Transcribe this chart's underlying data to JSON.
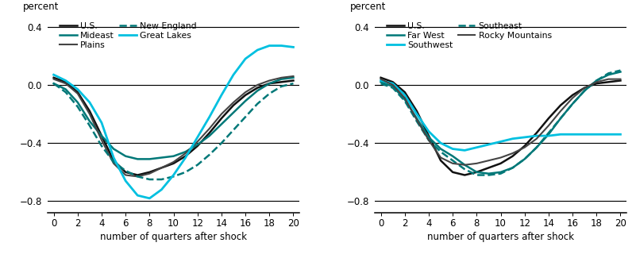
{
  "quarters": [
    0,
    1,
    2,
    3,
    4,
    5,
    6,
    7,
    8,
    9,
    10,
    11,
    12,
    13,
    14,
    15,
    16,
    17,
    18,
    19,
    20
  ],
  "panel1": {
    "title_y": "percent",
    "xlabel": "number of quarters after shock",
    "ylim": [
      -0.88,
      0.46
    ],
    "yticks": [
      -0.8,
      -0.4,
      0.0,
      0.4
    ],
    "xticks": [
      0,
      2,
      4,
      6,
      8,
      10,
      12,
      14,
      16,
      18,
      20
    ],
    "series": [
      {
        "name": "U.S.",
        "color": "#111111",
        "lw": 1.8,
        "linestyle": "solid",
        "data": [
          0.05,
          0.02,
          -0.05,
          -0.18,
          -0.35,
          -0.52,
          -0.6,
          -0.62,
          -0.6,
          -0.57,
          -0.54,
          -0.49,
          -0.42,
          -0.33,
          -0.23,
          -0.14,
          -0.07,
          -0.02,
          0.01,
          0.02,
          0.03
        ]
      },
      {
        "name": "Mideast",
        "color": "#007878",
        "lw": 1.8,
        "linestyle": "solid",
        "data": [
          0.01,
          -0.03,
          -0.12,
          -0.25,
          -0.35,
          -0.44,
          -0.49,
          -0.51,
          -0.51,
          -0.5,
          -0.49,
          -0.46,
          -0.41,
          -0.35,
          -0.27,
          -0.19,
          -0.11,
          -0.04,
          0.01,
          0.04,
          0.05
        ]
      },
      {
        "name": "Plains",
        "color": "#444444",
        "lw": 1.5,
        "linestyle": "solid",
        "data": [
          0.04,
          0.01,
          -0.06,
          -0.2,
          -0.38,
          -0.54,
          -0.62,
          -0.63,
          -0.61,
          -0.57,
          -0.53,
          -0.47,
          -0.39,
          -0.3,
          -0.2,
          -0.12,
          -0.05,
          0.0,
          0.03,
          0.05,
          0.06
        ]
      },
      {
        "name": "New England",
        "color": "#007878",
        "lw": 1.8,
        "linestyle": "dashed",
        "data": [
          0.01,
          -0.05,
          -0.15,
          -0.28,
          -0.42,
          -0.53,
          -0.59,
          -0.63,
          -0.65,
          -0.65,
          -0.63,
          -0.6,
          -0.55,
          -0.48,
          -0.4,
          -0.31,
          -0.22,
          -0.13,
          -0.06,
          -0.01,
          0.01
        ]
      },
      {
        "name": "Great Lakes",
        "color": "#00c0e0",
        "lw": 2.0,
        "linestyle": "solid",
        "data": [
          0.07,
          0.03,
          -0.03,
          -0.12,
          -0.26,
          -0.5,
          -0.66,
          -0.76,
          -0.78,
          -0.72,
          -0.62,
          -0.5,
          -0.36,
          -0.22,
          -0.07,
          0.07,
          0.18,
          0.24,
          0.27,
          0.27,
          0.26
        ]
      }
    ],
    "legend": [
      {
        "label": "U.S.",
        "color": "#111111",
        "lw": 1.8,
        "linestyle": "solid"
      },
      {
        "label": "Mideast",
        "color": "#007878",
        "lw": 1.8,
        "linestyle": "solid"
      },
      {
        "label": "Plains",
        "color": "#444444",
        "lw": 1.5,
        "linestyle": "solid"
      },
      {
        "label": "New England",
        "color": "#007878",
        "lw": 1.8,
        "linestyle": "dashed"
      },
      {
        "label": "Great Lakes",
        "color": "#00c0e0",
        "lw": 2.0,
        "linestyle": "solid"
      }
    ]
  },
  "panel2": {
    "title_y": "percent",
    "xlabel": "number of quarters after shock",
    "ylim": [
      -0.88,
      0.46
    ],
    "yticks": [
      -0.8,
      -0.4,
      0.0,
      0.4
    ],
    "xticks": [
      0,
      2,
      4,
      6,
      8,
      10,
      12,
      14,
      16,
      18,
      20
    ],
    "series": [
      {
        "name": "U.S.",
        "color": "#111111",
        "lw": 1.8,
        "linestyle": "solid",
        "data": [
          0.05,
          0.02,
          -0.05,
          -0.18,
          -0.35,
          -0.52,
          -0.6,
          -0.62,
          -0.6,
          -0.57,
          -0.54,
          -0.49,
          -0.42,
          -0.33,
          -0.23,
          -0.14,
          -0.07,
          -0.02,
          0.01,
          0.02,
          0.03
        ]
      },
      {
        "name": "Far West",
        "color": "#007878",
        "lw": 1.8,
        "linestyle": "solid",
        "data": [
          0.02,
          -0.01,
          -0.1,
          -0.23,
          -0.36,
          -0.44,
          -0.49,
          -0.55,
          -0.6,
          -0.61,
          -0.6,
          -0.57,
          -0.51,
          -0.43,
          -0.34,
          -0.23,
          -0.13,
          -0.04,
          0.03,
          0.07,
          0.09
        ]
      },
      {
        "name": "Southwest",
        "color": "#00c0e0",
        "lw": 2.0,
        "linestyle": "solid",
        "data": [
          0.03,
          0.01,
          -0.07,
          -0.2,
          -0.32,
          -0.4,
          -0.44,
          -0.45,
          -0.43,
          -0.41,
          -0.39,
          -0.37,
          -0.36,
          -0.35,
          -0.35,
          -0.34,
          -0.34,
          -0.34,
          -0.34,
          -0.34,
          -0.34
        ]
      },
      {
        "name": "Southeast",
        "color": "#007878",
        "lw": 1.8,
        "linestyle": "dashed",
        "data": [
          0.01,
          -0.02,
          -0.11,
          -0.25,
          -0.38,
          -0.46,
          -0.52,
          -0.58,
          -0.62,
          -0.62,
          -0.61,
          -0.57,
          -0.51,
          -0.43,
          -0.33,
          -0.23,
          -0.13,
          -0.04,
          0.03,
          0.08,
          0.1
        ]
      },
      {
        "name": "Rocky Mountains",
        "color": "#444444",
        "lw": 1.5,
        "linestyle": "solid",
        "data": [
          0.04,
          0.0,
          -0.09,
          -0.24,
          -0.38,
          -0.5,
          -0.54,
          -0.55,
          -0.54,
          -0.52,
          -0.5,
          -0.47,
          -0.43,
          -0.37,
          -0.28,
          -0.18,
          -0.09,
          -0.02,
          0.02,
          0.04,
          0.04
        ]
      }
    ],
    "legend": [
      {
        "label": "U.S.",
        "color": "#111111",
        "lw": 1.8,
        "linestyle": "solid"
      },
      {
        "label": "Far West",
        "color": "#007878",
        "lw": 1.8,
        "linestyle": "solid"
      },
      {
        "label": "Southwest",
        "color": "#00c0e0",
        "lw": 2.0,
        "linestyle": "solid"
      },
      {
        "label": "Southeast",
        "color": "#007878",
        "lw": 1.8,
        "linestyle": "dashed"
      },
      {
        "label": "Rocky Mountains",
        "color": "#444444",
        "lw": 1.5,
        "linestyle": "solid"
      }
    ]
  },
  "bg_color": "#ffffff",
  "hline_color": "#000000",
  "tick_fontsize": 8.5,
  "label_fontsize": 8.5,
  "title_fontsize": 8.5
}
